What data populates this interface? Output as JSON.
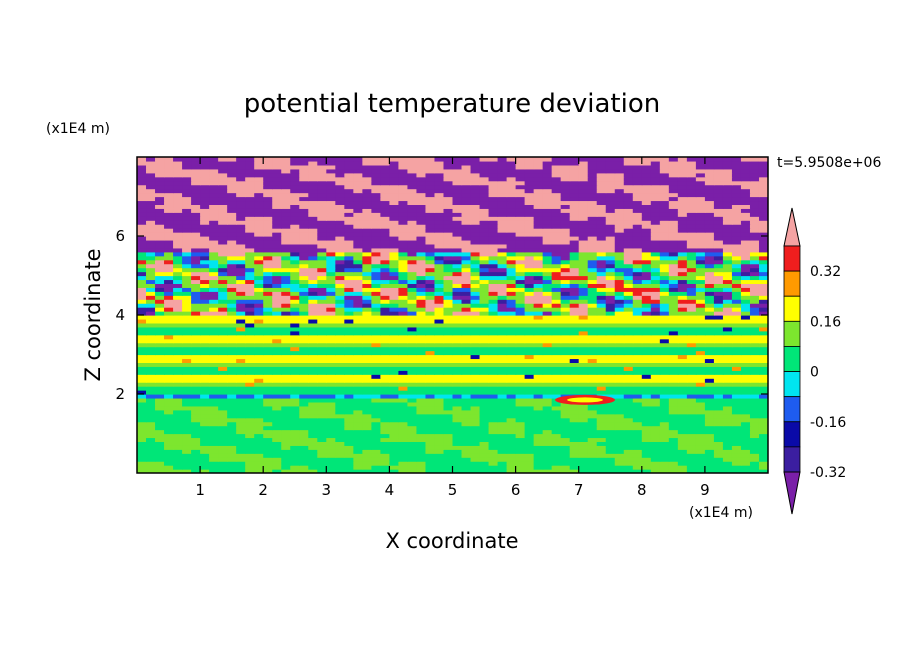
{
  "chart_data": {
    "type": "heatmap",
    "title": "potential temperature deviation",
    "xlabel": "X coordinate",
    "ylabel": "Z coordinate",
    "x_unit": "(x1E4 m)",
    "y_unit": "(x1E4 m)",
    "time_label": "t=5.9508e+06",
    "xlim": [
      0,
      10
    ],
    "ylim": [
      0,
      8
    ],
    "x_ticks": [
      "1",
      "2",
      "3",
      "4",
      "5",
      "6",
      "7",
      "8",
      "9"
    ],
    "y_ticks": [
      "2",
      "4",
      "6"
    ],
    "colorbar": {
      "levels": [
        -0.4,
        -0.32,
        -0.24,
        -0.16,
        -0.08,
        0,
        0.08,
        0.16,
        0.24,
        0.32,
        0.4
      ],
      "tick_labels": [
        "0.32",
        "0.16",
        "0",
        "-0.16",
        "-0.32"
      ],
      "colors": [
        "#7a1fa8",
        "#3b1ea0",
        "#0a0aa8",
        "#1e5cf0",
        "#00e5f0",
        "#00e678",
        "#7de62e",
        "#ffff00",
        "#ff9a00",
        "#f01e1e",
        "#f5a3a3"
      ]
    },
    "layers": [
      {
        "z_range": [
          0,
          2.0
        ],
        "description_value": "mostly -0.08 to 0.08, green"
      },
      {
        "z_range": [
          2.0,
          4.0
        ],
        "description_value": "banded 0 to 0.16"
      },
      {
        "z_range": [
          4.0,
          5.6
        ],
        "description_value": "mixed -0.4 to 0.4"
      },
      {
        "z_range": [
          5.6,
          8.0
        ],
        "description_value": "alternating -0.4 and 0.4"
      }
    ]
  }
}
